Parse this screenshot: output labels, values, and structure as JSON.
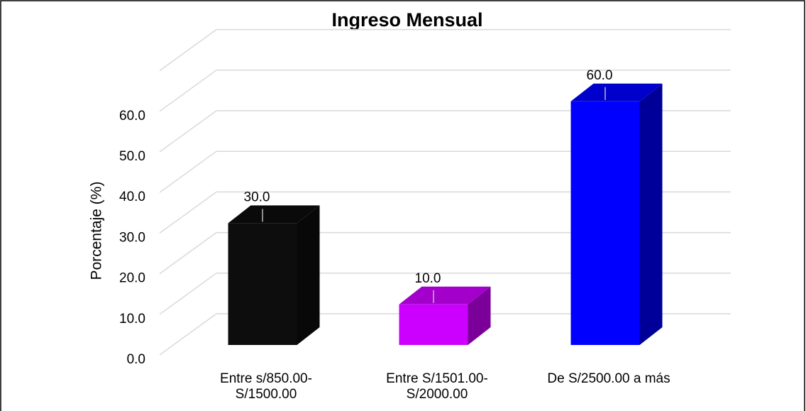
{
  "chart_data": {
    "type": "bar3d",
    "title": "Ingreso Mensual",
    "y_label": "Porcentaje   (%)",
    "categories": [
      "Entre s/850.00-\nS/1500.00",
      "Entre S/1501.00-\nS/2000.00",
      "De S/2500.00 a más"
    ],
    "values": [
      30,
      10,
      60
    ],
    "value_labels": [
      "30.0",
      "10.0",
      "60.0"
    ],
    "colors": [
      "#0d0d0d",
      "#cc00ff",
      "#0000ff"
    ],
    "ylim": [
      0,
      70
    ],
    "yticks": [
      {
        "value": 0,
        "label": "0.0"
      },
      {
        "value": 10,
        "label": "10.0"
      },
      {
        "value": 20,
        "label": "20.0"
      },
      {
        "value": 30,
        "label": "30.0"
      },
      {
        "value": 40,
        "label": "40.0"
      },
      {
        "value": 50,
        "label": "50.0"
      },
      {
        "value": 60,
        "label": "60.0"
      }
    ],
    "grid": true
  }
}
